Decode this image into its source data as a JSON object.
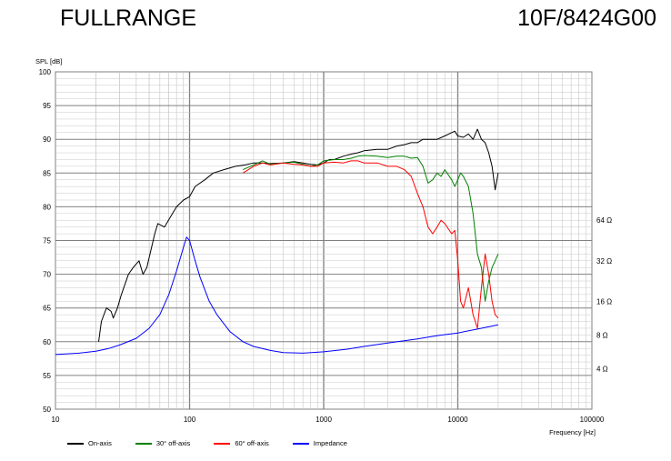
{
  "header": {
    "left_title": "FULLRANGE",
    "right_title": "10F/8424G00"
  },
  "chart_data": {
    "type": "line",
    "title": "FULLRANGE",
    "model": "10F/8424G00",
    "xlabel": "Frequency [Hz]",
    "ylabel": "SPL [dB]",
    "x_scale": "log",
    "xlim": [
      10,
      100000
    ],
    "ylim": [
      50,
      100
    ],
    "x_ticks": [
      "10",
      "100",
      "1000",
      "10000",
      "100000"
    ],
    "y_ticks": [
      "50",
      "55",
      "60",
      "65",
      "70",
      "75",
      "80",
      "85",
      "90",
      "95",
      "100"
    ],
    "y2_ticks": [
      "4 Ω",
      "8 Ω",
      "16 Ω",
      "32 Ω",
      "64 Ω"
    ],
    "grid": true,
    "legend_position": "bottom",
    "colors": {
      "on_axis": "#000000",
      "off30": "#008000",
      "off60": "#ff0000",
      "impedance": "#0000ff",
      "grid": "#c8c8c8",
      "major_grid": "#808080"
    },
    "series": [
      {
        "name": "On-axis",
        "color": "#000000",
        "points": [
          [
            21,
            60
          ],
          [
            22,
            63
          ],
          [
            24,
            65
          ],
          [
            26,
            64.5
          ],
          [
            27,
            63.5
          ],
          [
            29,
            65
          ],
          [
            31,
            67
          ],
          [
            35,
            70
          ],
          [
            38,
            71
          ],
          [
            42,
            72
          ],
          [
            45,
            70
          ],
          [
            48,
            71
          ],
          [
            55,
            76
          ],
          [
            58,
            77.5
          ],
          [
            65,
            77
          ],
          [
            72,
            78.5
          ],
          [
            80,
            80
          ],
          [
            90,
            81
          ],
          [
            100,
            81.5
          ],
          [
            110,
            83
          ],
          [
            130,
            84
          ],
          [
            150,
            85
          ],
          [
            180,
            85.5
          ],
          [
            220,
            86
          ],
          [
            260,
            86.2
          ],
          [
            300,
            86.5
          ],
          [
            350,
            86.5
          ],
          [
            400,
            86.4
          ],
          [
            500,
            86.5
          ],
          [
            600,
            86.7
          ],
          [
            700,
            86.5
          ],
          [
            800,
            86.3
          ],
          [
            900,
            86.2
          ],
          [
            1000,
            86.5
          ],
          [
            1100,
            87
          ],
          [
            1200,
            87
          ],
          [
            1400,
            87.5
          ],
          [
            1600,
            87.8
          ],
          [
            1800,
            88
          ],
          [
            2000,
            88.3
          ],
          [
            2500,
            88.5
          ],
          [
            3000,
            88.5
          ],
          [
            3500,
            89
          ],
          [
            4000,
            89.2
          ],
          [
            4500,
            89.5
          ],
          [
            5000,
            89.5
          ],
          [
            5500,
            90
          ],
          [
            6000,
            90
          ],
          [
            7000,
            90
          ],
          [
            8000,
            90.5
          ],
          [
            9000,
            91
          ],
          [
            9500,
            91.2
          ],
          [
            10000,
            90.5
          ],
          [
            11000,
            90.3
          ],
          [
            12000,
            90.8
          ],
          [
            13000,
            90
          ],
          [
            14000,
            91.5
          ],
          [
            15000,
            90
          ],
          [
            16000,
            89.5
          ],
          [
            17000,
            88
          ],
          [
            18000,
            86
          ],
          [
            19000,
            82.5
          ],
          [
            20000,
            85
          ]
        ]
      },
      {
        "name": "30° off-axis",
        "color": "#008000",
        "points": [
          [
            250,
            85.5
          ],
          [
            300,
            86.2
          ],
          [
            350,
            86.8
          ],
          [
            400,
            86.3
          ],
          [
            500,
            86.5
          ],
          [
            600,
            86.6
          ],
          [
            700,
            86.3
          ],
          [
            800,
            86
          ],
          [
            900,
            86.2
          ],
          [
            1000,
            86.8
          ],
          [
            1200,
            87
          ],
          [
            1400,
            87
          ],
          [
            1600,
            87.2
          ],
          [
            1800,
            87.5
          ],
          [
            2000,
            87.6
          ],
          [
            2500,
            87.5
          ],
          [
            3000,
            87.3
          ],
          [
            3500,
            87.5
          ],
          [
            4000,
            87.5
          ],
          [
            4500,
            87.2
          ],
          [
            5000,
            87.3
          ],
          [
            5500,
            86
          ],
          [
            6000,
            83.5
          ],
          [
            6500,
            84
          ],
          [
            7000,
            85
          ],
          [
            7500,
            84.5
          ],
          [
            8000,
            85.5
          ],
          [
            9000,
            84
          ],
          [
            9500,
            83
          ],
          [
            10000,
            84
          ],
          [
            10500,
            85
          ],
          [
            11000,
            84.5
          ],
          [
            12000,
            83
          ],
          [
            13000,
            79
          ],
          [
            14000,
            73
          ],
          [
            15000,
            71
          ],
          [
            16000,
            66
          ],
          [
            17000,
            69
          ],
          [
            18000,
            71
          ],
          [
            19000,
            72
          ],
          [
            20000,
            73
          ]
        ]
      },
      {
        "name": "60° off-axis",
        "color": "#ff0000",
        "points": [
          [
            250,
            85
          ],
          [
            300,
            86
          ],
          [
            350,
            86.5
          ],
          [
            400,
            86.2
          ],
          [
            500,
            86.5
          ],
          [
            600,
            86.3
          ],
          [
            700,
            86.2
          ],
          [
            800,
            86
          ],
          [
            900,
            86
          ],
          [
            1000,
            86.5
          ],
          [
            1200,
            86.6
          ],
          [
            1400,
            86.5
          ],
          [
            1600,
            86.8
          ],
          [
            1800,
            86.8
          ],
          [
            2000,
            86.5
          ],
          [
            2500,
            86.5
          ],
          [
            3000,
            86
          ],
          [
            3500,
            86
          ],
          [
            4000,
            85.5
          ],
          [
            4500,
            84.5
          ],
          [
            5000,
            82
          ],
          [
            5500,
            80
          ],
          [
            6000,
            77
          ],
          [
            6500,
            76
          ],
          [
            7000,
            77
          ],
          [
            7500,
            78
          ],
          [
            8000,
            77.5
          ],
          [
            9000,
            76
          ],
          [
            9500,
            76.5
          ],
          [
            10000,
            72
          ],
          [
            10500,
            66
          ],
          [
            11000,
            65
          ],
          [
            12000,
            68
          ],
          [
            13000,
            64
          ],
          [
            14000,
            62
          ],
          [
            15000,
            68
          ],
          [
            16000,
            73
          ],
          [
            17000,
            70
          ],
          [
            18000,
            66
          ],
          [
            19000,
            64
          ],
          [
            20000,
            63.5
          ]
        ]
      },
      {
        "name": "Impedance",
        "color": "#0000ff",
        "points": [
          [
            10,
            58.1
          ],
          [
            15,
            58.3
          ],
          [
            20,
            58.6
          ],
          [
            25,
            59
          ],
          [
            30,
            59.5
          ],
          [
            40,
            60.5
          ],
          [
            50,
            62
          ],
          [
            60,
            64
          ],
          [
            70,
            67
          ],
          [
            80,
            70.5
          ],
          [
            90,
            74
          ],
          [
            95,
            75.5
          ],
          [
            100,
            75
          ],
          [
            110,
            72
          ],
          [
            120,
            69.5
          ],
          [
            140,
            66
          ],
          [
            160,
            64
          ],
          [
            200,
            61.5
          ],
          [
            250,
            60
          ],
          [
            300,
            59.3
          ],
          [
            400,
            58.7
          ],
          [
            500,
            58.4
          ],
          [
            700,
            58.3
          ],
          [
            1000,
            58.5
          ],
          [
            1500,
            58.9
          ],
          [
            2000,
            59.3
          ],
          [
            3000,
            59.8
          ],
          [
            5000,
            60.4
          ],
          [
            7000,
            60.9
          ],
          [
            10000,
            61.3
          ],
          [
            15000,
            62
          ],
          [
            20000,
            62.5
          ]
        ]
      }
    ]
  },
  "legend": [
    {
      "label": "On-axis",
      "color": "#000000"
    },
    {
      "label": "30° off-axis",
      "color": "#008000"
    },
    {
      "label": "60° off-axis",
      "color": "#ff0000"
    },
    {
      "label": "Impedance",
      "color": "#0000ff"
    }
  ]
}
